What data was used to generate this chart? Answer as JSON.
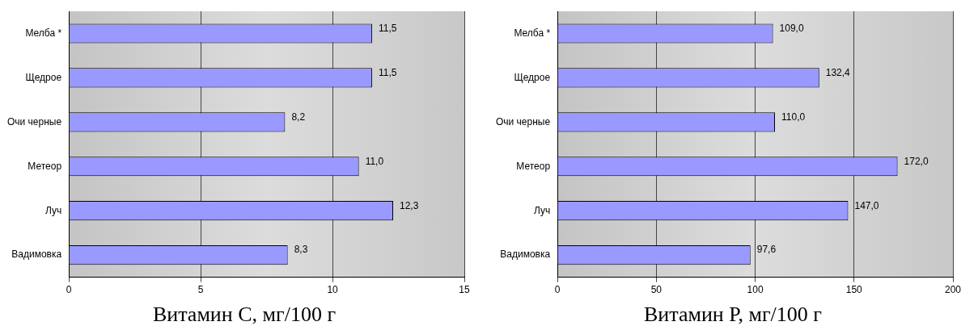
{
  "chart_data": [
    {
      "type": "bar",
      "orientation": "horizontal",
      "xlabel": "Витамин С, мг/100 г",
      "categories": [
        "Мелба *",
        "Щедрое",
        "Очи черные",
        "Метеор",
        "Луч",
        "Вадимовка"
      ],
      "values": [
        11.5,
        11.5,
        8.2,
        11.0,
        12.3,
        8.3
      ],
      "value_labels": [
        "11,5",
        "11,5",
        "8,2",
        "11,0",
        "12,3",
        "8,3"
      ],
      "color": "#9999ff",
      "xlim": [
        0,
        15
      ],
      "xticks": [
        0,
        5,
        10,
        15
      ],
      "grid": "x",
      "legend": false
    },
    {
      "type": "bar",
      "orientation": "horizontal",
      "xlabel": "Витамин Р, мг/100 г",
      "categories": [
        "Мелба *",
        "Щедрое",
        "Очи черные",
        "Метеор",
        "Луч",
        "Вадимовка"
      ],
      "values": [
        109.0,
        132.4,
        110.0,
        172.0,
        147.0,
        97.6
      ],
      "value_labels": [
        "109,0",
        "132,4",
        "110,0",
        "172,0",
        "147,0",
        "97,6"
      ],
      "color": "#9999ff",
      "xlim": [
        0,
        200
      ],
      "xticks": [
        0,
        50,
        100,
        150,
        200
      ],
      "grid": "x",
      "legend": false
    }
  ]
}
